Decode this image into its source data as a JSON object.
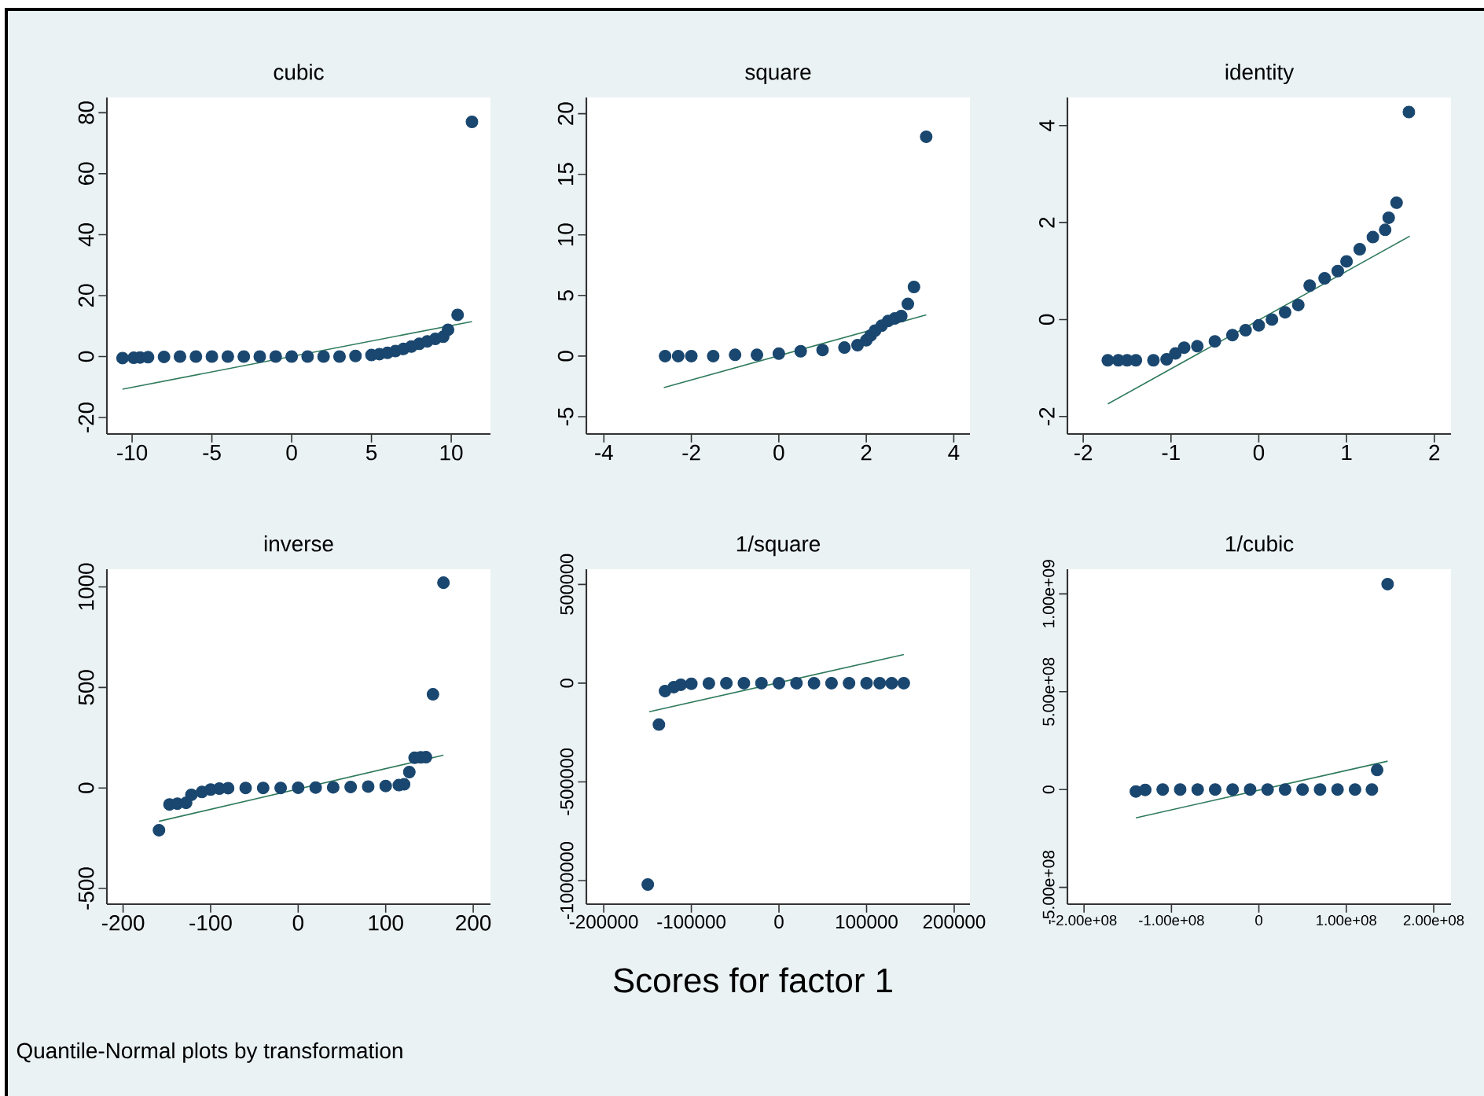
{
  "chart_data": [
    {
      "type": "scatter",
      "title": "cubic",
      "xlim": [
        -11.58,
        12.46
      ],
      "ylim": [
        -25.4,
        85
      ],
      "xticks": [
        -10,
        -5,
        0,
        5,
        10
      ],
      "yticks": [
        -20,
        0,
        20,
        40,
        60,
        80
      ],
      "marker": "circle",
      "series": [
        {
          "color": "#1a476f",
          "x": [
            -10.6,
            -9.9,
            -9.5,
            -9,
            -8,
            -7,
            -6,
            -5,
            -4,
            -3,
            -2,
            -1,
            0,
            1,
            2,
            3,
            4,
            5,
            5.5,
            6,
            6.5,
            7,
            7.5,
            8,
            8.5,
            9,
            9.5,
            9.8,
            10.4,
            11.3
          ],
          "values": [
            -0.5,
            -0.4,
            -0.3,
            -0.2,
            -0.1,
            0,
            0,
            0,
            0,
            0,
            0,
            0,
            0,
            0,
            0,
            0,
            0.2,
            0.5,
            0.8,
            1.2,
            1.8,
            2.5,
            3.3,
            4.2,
            5,
            5.8,
            6.5,
            8.8,
            13.7,
            77
          ]
        },
        {
          "type": "line",
          "color": "#2f7a5c",
          "x": [
            -10.6,
            11.3
          ],
          "values": [
            -10.7,
            11.5
          ],
          "marker": "none"
        }
      ]
    },
    {
      "type": "scatter",
      "title": "square",
      "xlim": [
        -4.4,
        4.37
      ],
      "ylim": [
        -6.43,
        21.34
      ],
      "xticks": [
        -4,
        -2,
        0,
        2,
        4
      ],
      "yticks": [
        -5,
        0,
        5,
        10,
        15,
        20
      ],
      "marker": "circle",
      "series": [
        {
          "color": "#1a476f",
          "x": [
            -2.6,
            -2.3,
            -2,
            -1.5,
            -1,
            -0.5,
            0,
            0.5,
            1,
            1.5,
            1.8,
            2,
            2.1,
            2.2,
            2.35,
            2.5,
            2.65,
            2.8,
            2.95,
            3.09,
            3.37
          ],
          "values": [
            0,
            0,
            0,
            0,
            0.1,
            0.1,
            0.2,
            0.4,
            0.5,
            0.7,
            0.9,
            1.3,
            1.7,
            2.1,
            2.5,
            2.9,
            3.1,
            3.3,
            4.3,
            5.7,
            18.1
          ]
        },
        {
          "type": "line",
          "color": "#2f7a5c",
          "x": [
            -2.63,
            3.37
          ],
          "values": [
            -2.6,
            3.4
          ],
          "marker": "none"
        }
      ]
    },
    {
      "type": "scatter",
      "title": "identity",
      "xlim": [
        -2.18,
        2.19
      ],
      "ylim": [
        -2.36,
        4.58
      ],
      "xticks": [
        -2,
        -1,
        0,
        1,
        2
      ],
      "yticks": [
        -2,
        0,
        2,
        4
      ],
      "marker": "circle",
      "series": [
        {
          "color": "#1a476f",
          "x": [
            -1.72,
            -1.6,
            -1.5,
            -1.4,
            -1.2,
            -1.05,
            -0.95,
            -0.85,
            -0.7,
            -0.5,
            -0.3,
            -0.15,
            0,
            0.15,
            0.3,
            0.45,
            0.58,
            0.75,
            0.9,
            1.0,
            1.15,
            1.3,
            1.44,
            1.48,
            1.57,
            1.71
          ],
          "values": [
            -0.84,
            -0.84,
            -0.84,
            -0.84,
            -0.84,
            -0.82,
            -0.7,
            -0.58,
            -0.55,
            -0.45,
            -0.32,
            -0.22,
            -0.12,
            0.0,
            0.15,
            0.3,
            0.7,
            0.85,
            1.0,
            1.2,
            1.45,
            1.7,
            1.85,
            2.1,
            2.41,
            4.28
          ]
        },
        {
          "type": "line",
          "color": "#2f7a5c",
          "x": [
            -1.72,
            1.72
          ],
          "values": [
            -1.74,
            1.72
          ],
          "marker": "none"
        }
      ]
    },
    {
      "type": "scatter",
      "title": "inverse",
      "xlim": [
        -218.5,
        219.7
      ],
      "ylim": [
        -578,
        1088
      ],
      "xticks": [
        -200,
        -100,
        0,
        100,
        200
      ],
      "yticks": [
        -500,
        0,
        500,
        1000
      ],
      "marker": "circle",
      "annotations": [
        "Quantile-Normal plots by transformation"
      ],
      "series": [
        {
          "color": "#1a476f",
          "x": [
            -159,
            -147,
            -138,
            -128,
            -122,
            -110,
            -100,
            -90,
            -80,
            -60,
            -40,
            -20,
            0,
            20,
            40,
            60,
            80,
            100,
            115,
            121,
            127,
            133,
            140,
            146,
            154,
            166
          ],
          "values": [
            -210,
            -82,
            -78,
            -74,
            -34,
            -20,
            -8,
            -3,
            -1,
            0,
            0,
            0,
            1,
            2,
            3,
            5,
            7,
            10,
            14,
            18,
            79,
            150,
            152,
            153,
            466,
            1021
          ]
        },
        {
          "type": "line",
          "color": "#2f7a5c",
          "x": [
            -159,
            166
          ],
          "values": [
            -166,
            163
          ],
          "marker": "none"
        }
      ]
    },
    {
      "type": "scatter",
      "title": "1/square",
      "xlabel": "Scores for factor 1",
      "xlim": [
        -219800,
        218000
      ],
      "ylim": [
        -1119500,
        577000
      ],
      "xticks": [
        -200000,
        -100000,
        0,
        100000,
        200000
      ],
      "yticks": [
        -1000000,
        -500000,
        0,
        500000
      ],
      "marker": "circle",
      "series": [
        {
          "color": "#1a476f",
          "x": [
            -149700,
            -137000,
            -130000,
            -120000,
            -112000,
            -100000,
            -80000,
            -60000,
            -40000,
            -20000,
            0,
            20000,
            40000,
            60000,
            80000,
            100000,
            115000,
            128700,
            142500
          ],
          "values": [
            -1020000,
            -210000,
            -40000,
            -20000,
            -8000,
            -3000,
            -1000,
            0,
            0,
            0,
            0,
            0,
            0,
            0,
            0,
            0,
            0,
            0,
            0
          ]
        },
        {
          "type": "line",
          "color": "#2f7a5c",
          "x": [
            -148000,
            142500
          ],
          "values": [
            -145000,
            145000
          ],
          "marker": "none"
        }
      ]
    },
    {
      "type": "scatter",
      "title": "1/cubic",
      "xlim": [
        -219000000,
        219800000
      ],
      "ylim": [
        -586000000,
        1126000000
      ],
      "xticks": [
        {
          "value": -200000000,
          "label": "-2.00e+08"
        },
        {
          "value": -100000000,
          "label": "-1.00e+08"
        },
        0,
        {
          "value": 100000000,
          "label": "1.00e+08"
        },
        {
          "value": 200000000,
          "label": "2.00e+08"
        }
      ],
      "yticks": [
        {
          "value": -500000000,
          "label": "-5.00e+08"
        },
        0,
        {
          "value": 500000000,
          "label": "5.00e+08"
        },
        {
          "value": 1000000000,
          "label": "1.00e+09"
        }
      ],
      "marker": "circle",
      "series": [
        {
          "color": "#1a476f",
          "x": [
            -140700000,
            -130000000,
            -110000000,
            -90000000,
            -70000000,
            -50000000,
            -30000000,
            -10000000,
            10000000,
            30000000,
            50000000,
            70000000,
            90000000,
            110000000,
            129300000,
            135300000,
            147300000
          ],
          "values": [
            -10000000,
            -2000000,
            0,
            0,
            0,
            0,
            0,
            0,
            0,
            0,
            0,
            0,
            0,
            0,
            0,
            100000000,
            1050000000
          ]
        },
        {
          "type": "line",
          "color": "#2f7a5c",
          "x": [
            -140700000,
            147300000
          ],
          "values": [
            -145000000,
            145000000
          ],
          "marker": "none"
        }
      ]
    }
  ]
}
